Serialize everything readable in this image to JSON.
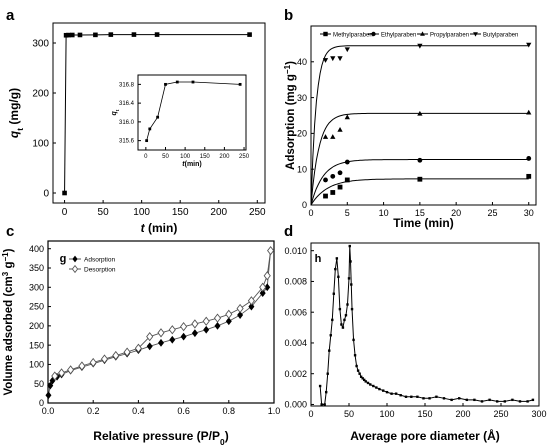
{
  "chart_data": [
    {
      "panel": "a",
      "type": "line",
      "xlabel": "t",
      "xunit": "(min)",
      "ylabel": "q",
      "ylabel_sub": "t",
      "yunit": "(mg/g)",
      "xlim": [
        -15,
        260
      ],
      "ylim": [
        -20,
        340
      ],
      "xticks": [
        0,
        50,
        100,
        150,
        200,
        250
      ],
      "yticks": [
        0,
        100,
        200,
        300
      ],
      "x": [
        0,
        2,
        5,
        10,
        20,
        40,
        60,
        90,
        120,
        240
      ],
      "y": [
        0,
        315.5,
        315.8,
        316.0,
        316.1,
        316.3,
        316.8,
        316.85,
        316.85,
        316.8
      ],
      "inset": {
        "xlabel": "t",
        "xunit": "(min)",
        "ylabel": "q",
        "ylabel_sub": "t",
        "xlim": [
          -20,
          255
        ],
        "ylim": [
          315.4,
          317.0
        ],
        "xticks": [
          0,
          50,
          100,
          150,
          200,
          250
        ],
        "yticks": [
          315.6,
          316.0,
          316.4,
          316.8
        ],
        "x": [
          2,
          10,
          30,
          50,
          80,
          120,
          240
        ],
        "y": [
          315.6,
          315.85,
          316.1,
          316.8,
          316.85,
          316.85,
          316.8
        ]
      }
    },
    {
      "panel": "b",
      "type": "line",
      "xlabel": "Time (min)",
      "ylabel": "Adsorption (mg g",
      "ylabel_sup": "−1",
      "ylabel_end": ")",
      "xlim": [
        0,
        31
      ],
      "ylim": [
        0,
        50
      ],
      "xticks": [
        0,
        5,
        10,
        15,
        20,
        25,
        30
      ],
      "yticks": [
        0,
        10,
        20,
        30,
        40
      ],
      "legend": "top",
      "series": [
        {
          "name": "Methylparaben",
          "marker": "square",
          "x": [
            2,
            3,
            4,
            5,
            15,
            30
          ],
          "y": [
            2.5,
            3.5,
            5,
            7,
            7.2,
            8
          ],
          "fit": [
            0,
            7.3,
            0.45
          ]
        },
        {
          "name": "Ethylparaben",
          "marker": "circle",
          "x": [
            2,
            3,
            4,
            5,
            15,
            30
          ],
          "y": [
            7,
            8,
            9,
            12,
            12.5,
            13
          ],
          "fit": [
            0,
            12.7,
            0.6
          ]
        },
        {
          "name": "Propylparaben",
          "marker": "triangle-up",
          "x": [
            2,
            3,
            4,
            5,
            15,
            30
          ],
          "y": [
            19,
            19,
            21,
            24.5,
            25.5,
            25.8
          ],
          "fit": [
            0,
            25.6,
            0.9
          ]
        },
        {
          "name": "Butylparaben",
          "marker": "triangle-down",
          "x": [
            2,
            3,
            4,
            5,
            15,
            30
          ],
          "y": [
            40.5,
            41,
            41,
            43.5,
            44.5,
            44.8
          ],
          "fit": [
            0,
            44.5,
            1.4
          ]
        }
      ]
    },
    {
      "panel": "c",
      "inner_label": "g",
      "type": "line",
      "xlabel": "Relative pressure (P/P",
      "xlabel_sub": "0",
      "xlabel_end": ")",
      "ylabel": "Volume adsorbed (cm",
      "ylabel_sup1": "3",
      "ylabel_mid": " g",
      "ylabel_sup2": "−1",
      "ylabel_end": ")",
      "xlim": [
        0,
        1.0
      ],
      "ylim": [
        0,
        420
      ],
      "xticks": [
        0.0,
        0.2,
        0.4,
        0.6,
        0.8,
        1.0
      ],
      "yticks": [
        0,
        50,
        100,
        150,
        200,
        250,
        300,
        350,
        400
      ],
      "legend": "top-left",
      "series": [
        {
          "name": "Adsorption",
          "marker": "diamond-filled",
          "x": [
            0.002,
            0.01,
            0.02,
            0.04,
            0.06,
            0.1,
            0.15,
            0.2,
            0.25,
            0.3,
            0.35,
            0.4,
            0.45,
            0.5,
            0.55,
            0.6,
            0.65,
            0.7,
            0.75,
            0.8,
            0.85,
            0.9,
            0.95,
            0.97,
            0.985
          ],
          "y": [
            20,
            45,
            58,
            68,
            74,
            84,
            93,
            102,
            111,
            120,
            128,
            137,
            147,
            156,
            164,
            172,
            181,
            190,
            200,
            212,
            228,
            250,
            285,
            300,
            395
          ]
        },
        {
          "name": "Desorption",
          "marker": "diamond-open",
          "x": [
            0.985,
            0.97,
            0.95,
            0.9,
            0.85,
            0.8,
            0.75,
            0.7,
            0.65,
            0.6,
            0.55,
            0.5,
            0.45,
            0.4,
            0.35,
            0.3,
            0.25,
            0.2,
            0.15,
            0.1,
            0.06,
            0.03
          ],
          "y": [
            395,
            330,
            300,
            265,
            245,
            230,
            220,
            212,
            205,
            198,
            190,
            182,
            172,
            142,
            132,
            123,
            114,
            105,
            96,
            86,
            78,
            70
          ]
        }
      ]
    },
    {
      "panel": "d",
      "inner_label": "h",
      "type": "line",
      "xlabel": "Average pore diameter (Å)",
      "xlim": [
        0,
        300
      ],
      "ylim": [
        -0.0001,
        0.0105
      ],
      "xticks": [
        0,
        50,
        100,
        150,
        200,
        250,
        300
      ],
      "yticks": [
        0.0,
        0.002,
        0.004,
        0.006,
        0.008,
        0.01
      ],
      "x": [
        12,
        14,
        18,
        20,
        22,
        24,
        26,
        28,
        30,
        32,
        34,
        36,
        38,
        40,
        42,
        44,
        46,
        48,
        50,
        51,
        52,
        53,
        54,
        56,
        58,
        60,
        62,
        64,
        66,
        68,
        70,
        72,
        75,
        78,
        82,
        86,
        90,
        95,
        100,
        106,
        112,
        118,
        125,
        132,
        140,
        148,
        156,
        165,
        175,
        185,
        195,
        205,
        215,
        225,
        235,
        245,
        255,
        265,
        275,
        285,
        292
      ],
      "y": [
        0.0012,
        0.0,
        0.0,
        0.0008,
        0.002,
        0.0035,
        0.0045,
        0.0055,
        0.0072,
        0.0088,
        0.0095,
        0.0083,
        0.0062,
        0.0052,
        0.005,
        0.0055,
        0.0058,
        0.0065,
        0.0082,
        0.0103,
        0.0093,
        0.0078,
        0.0062,
        0.0042,
        0.0032,
        0.0025,
        0.0022,
        0.002,
        0.0018,
        0.0017,
        0.0016,
        0.0015,
        0.0014,
        0.0013,
        0.0012,
        0.0011,
        0.001,
        0.0009,
        0.0008,
        0.0007,
        0.0007,
        0.0006,
        0.0005,
        0.0005,
        0.0005,
        0.0004,
        0.0004,
        0.0005,
        0.0004,
        0.0003,
        0.0004,
        0.0003,
        0.0003,
        0.0002,
        0.0003,
        0.0002,
        0.0002,
        0.0003,
        0.0002,
        0.0002,
        0.0003
      ]
    }
  ],
  "labels": {
    "panel_a": "a",
    "panel_b": "b",
    "panel_c": "c",
    "panel_d": "d"
  }
}
